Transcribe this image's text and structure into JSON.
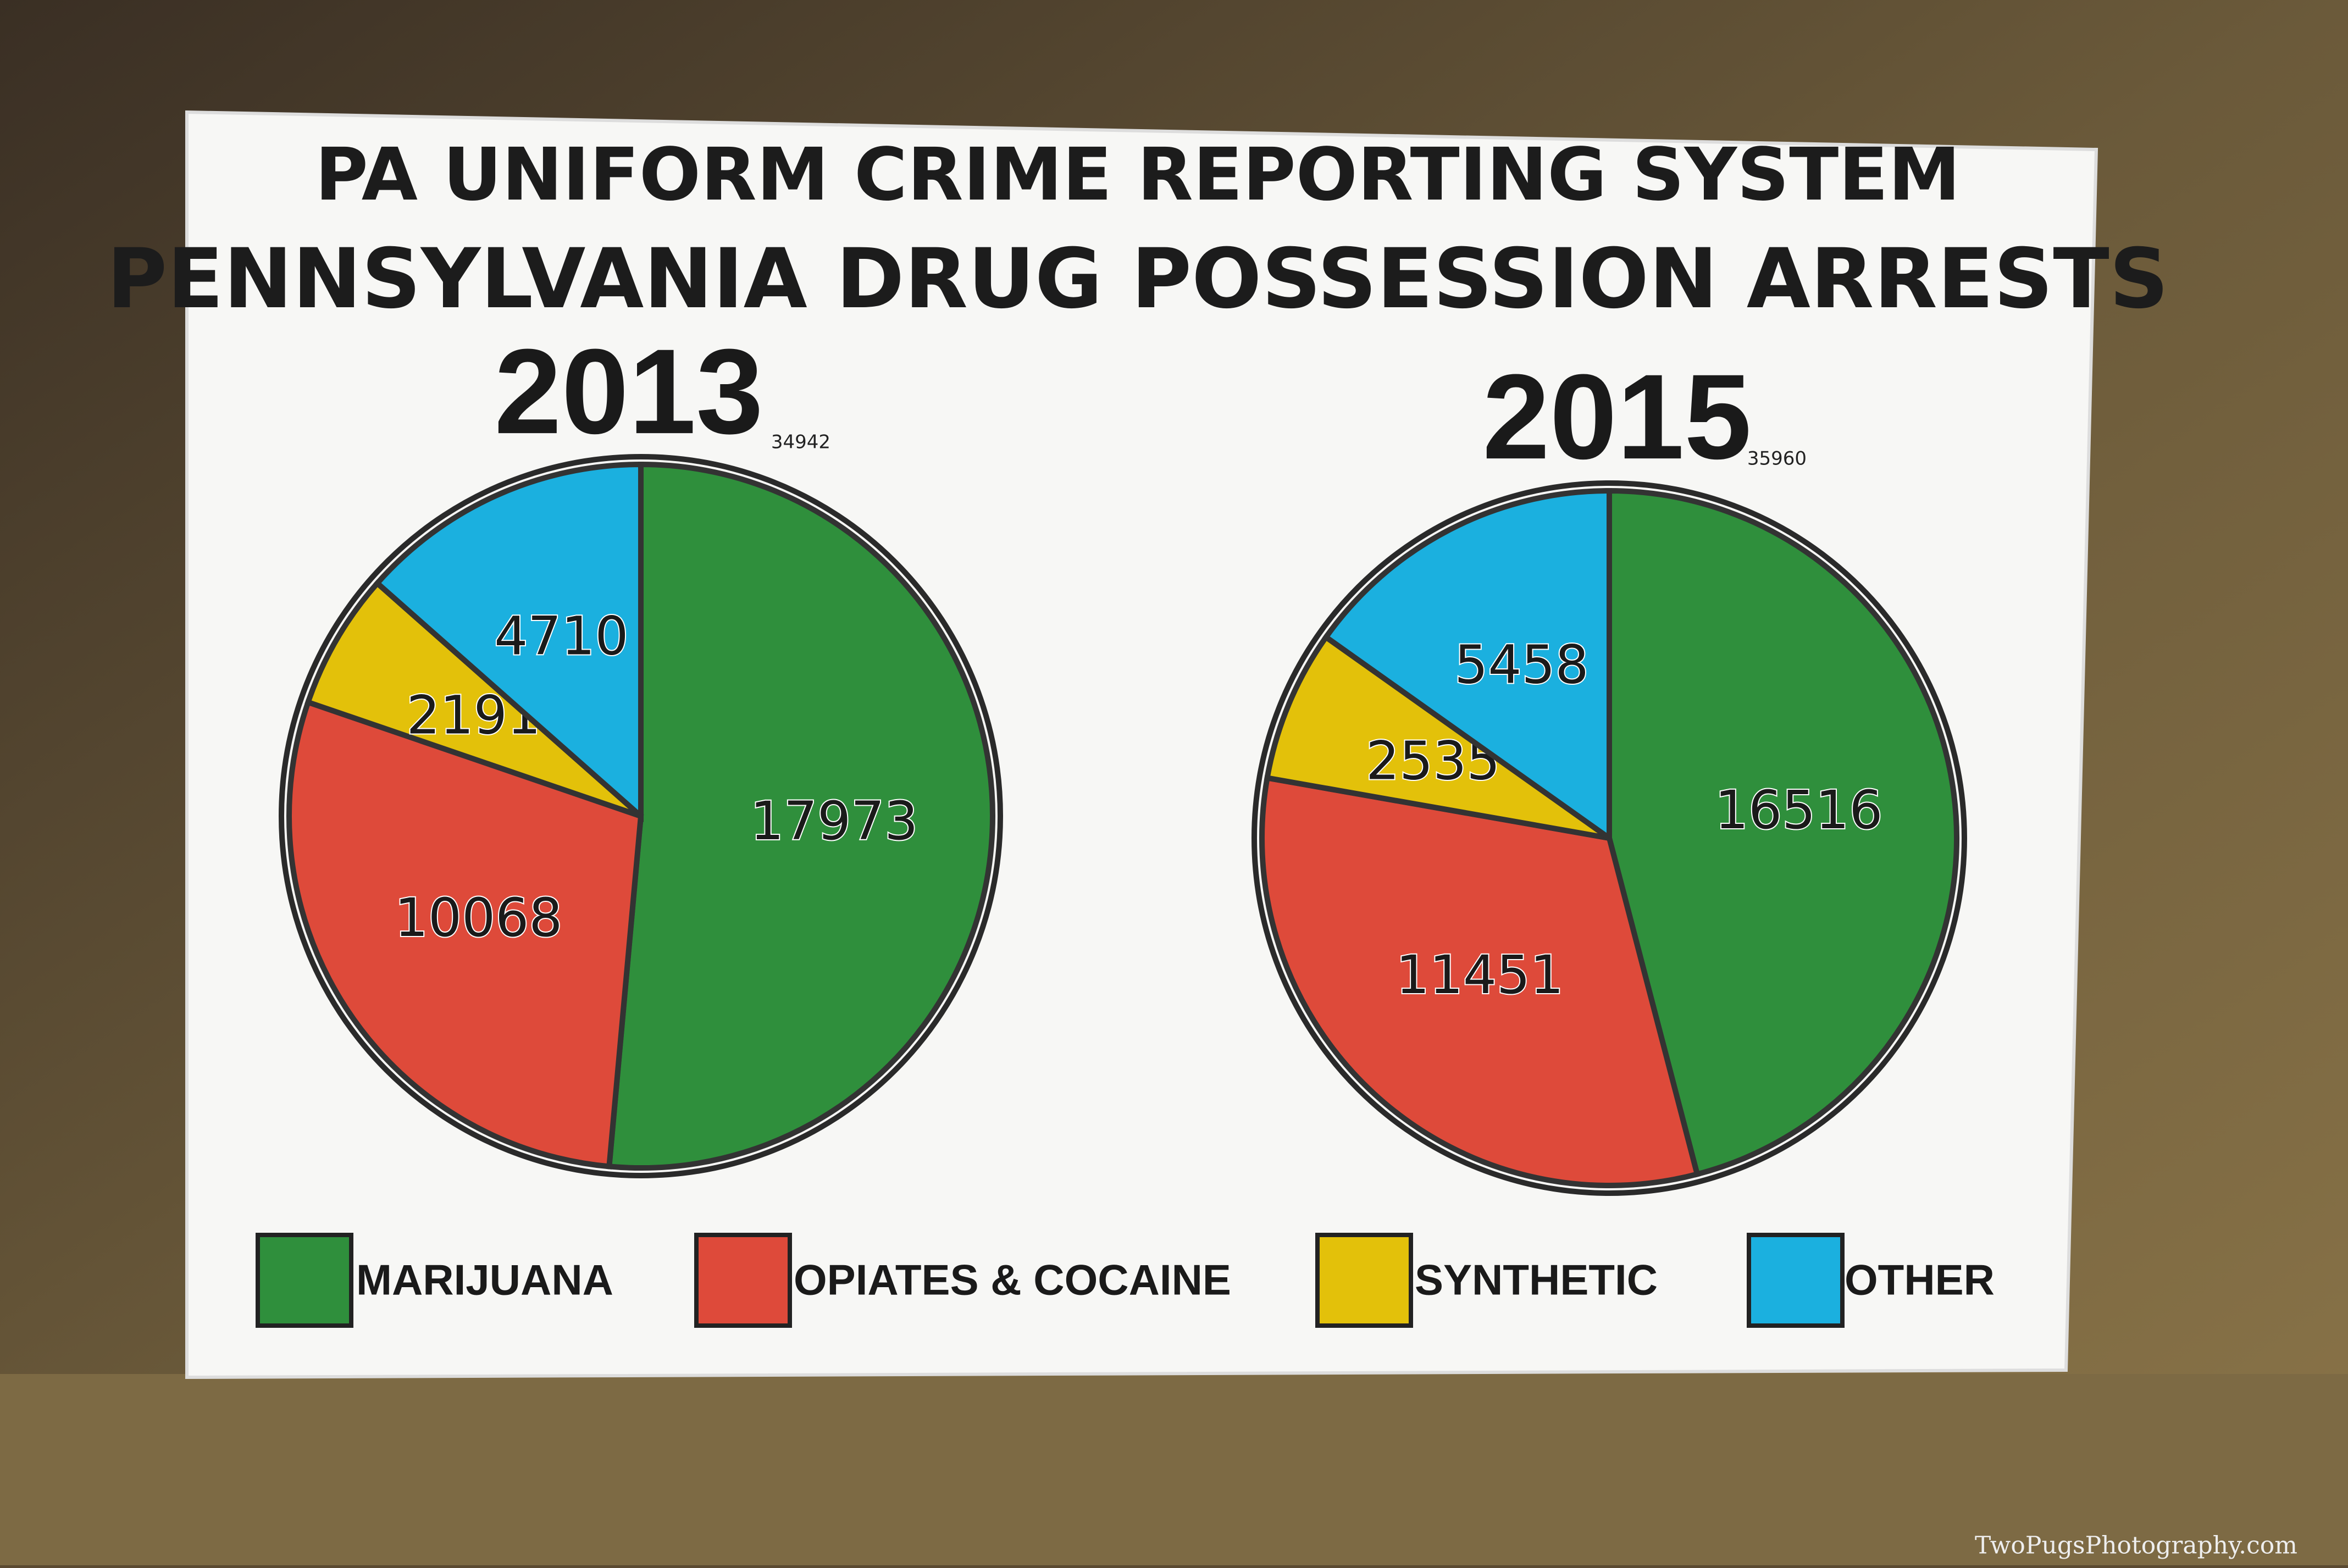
{
  "header": {
    "line1": "PA UNIFORM CRIME REPORTING SYSTEM",
    "line2": "PENNSYLVANIA DRUG POSSESSION ARRESTS"
  },
  "chart_data": [
    {
      "type": "pie",
      "title": "2013",
      "subtitle": "34942",
      "categories": [
        "MARIJUANA",
        "OPIATES & COCAINE",
        "SYNTHETIC",
        "OTHER"
      ],
      "values": [
        17973,
        10068,
        2191,
        4710
      ],
      "colors": [
        "#2f8f3c",
        "#de4a3a",
        "#e3c10a",
        "#1bb0df"
      ]
    },
    {
      "type": "pie",
      "title": "2015",
      "subtitle": "35960",
      "categories": [
        "MARIJUANA",
        "OPIATES & COCAINE",
        "SYNTHETIC",
        "OTHER"
      ],
      "values": [
        16516,
        11451,
        2535,
        5458
      ],
      "colors": [
        "#2f8f3c",
        "#de4a3a",
        "#e3c10a",
        "#1bb0df"
      ]
    }
  ],
  "watermark": "TwoPugsPhotography.com"
}
